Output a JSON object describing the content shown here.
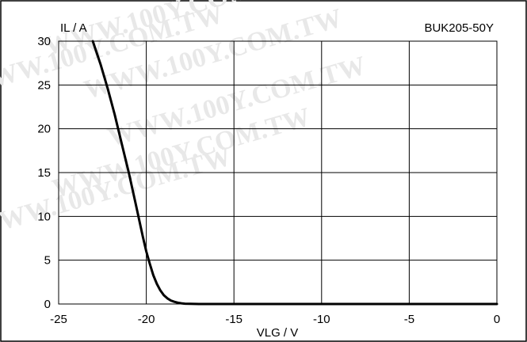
{
  "chart_data": {
    "type": "line",
    "id_label": "BUK205-50Y",
    "ylabel": "IL / A",
    "xlabel": "VLG / V",
    "xlim": [
      -25,
      0
    ],
    "ylim": [
      0,
      30
    ],
    "x_ticks": [
      -25,
      -20,
      -15,
      -10,
      -5,
      0
    ],
    "y_ticks": [
      0,
      5,
      10,
      15,
      20,
      25,
      30
    ],
    "x_tick_labels": [
      "-25",
      "-20",
      "-15",
      "-10",
      "-5",
      "0"
    ],
    "y_tick_labels": [
      "0",
      "5",
      "10",
      "15",
      "20",
      "25",
      "30"
    ],
    "grid": true,
    "series": [
      {
        "color": "#000000",
        "x": [
          -23.05,
          -22.6,
          -22.2,
          -21.8,
          -21.4,
          -21.0,
          -20.6,
          -20.2,
          -20.0,
          -19.8,
          -19.6,
          -19.4,
          -19.2,
          -19.0,
          -18.8,
          -18.6,
          -18.4,
          -18.2,
          -18.0,
          -17.8,
          -17.5,
          -17.0,
          -16.0,
          -12.0,
          -8.0,
          -4.0,
          0.0
        ],
        "y": [
          30.0,
          27.3,
          24.6,
          21.6,
          18.3,
          15.0,
          11.4,
          7.7,
          6.0,
          4.6,
          3.3,
          2.3,
          1.55,
          1.0,
          0.65,
          0.4,
          0.25,
          0.15,
          0.08,
          0.04,
          0.02,
          0.0,
          0.0,
          0.0,
          0.0,
          0.0,
          0.0
        ]
      }
    ],
    "watermark": "WWW.100Y.COM.TW"
  }
}
